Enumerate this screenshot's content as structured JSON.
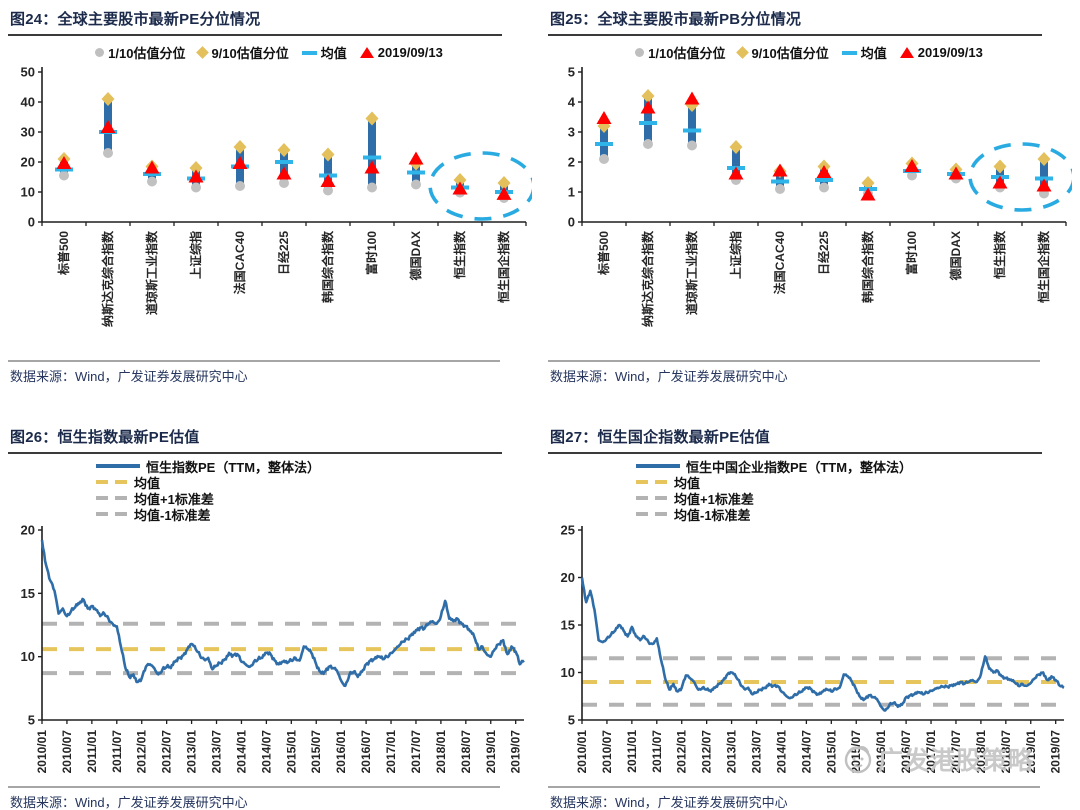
{
  "colors": {
    "bar_blue": "#2e6da8",
    "gold_diamond": "#e3c05c",
    "gray_marker": "#c1c1c1",
    "mean_cyan": "#2fb4e9",
    "current_red": "#ff0000",
    "highlight_cyan": "#29abe2",
    "line_blue": "#2e6da8",
    "mean_yellow": "#e6c65c",
    "std_gray": "#b3b3b3",
    "axis_black": "#1f1f1f",
    "title_navy": "#1b2a4a",
    "source_navy": "#25355e"
  },
  "watermark": {
    "logo": "gf-face-logo",
    "text": "广发港股策略"
  },
  "chart_data": [
    {
      "id": "fig24",
      "type": "range",
      "title": "图24：全球主要股市最新PE分位情况",
      "legend": [
        {
          "marker": "gray-dot",
          "label": "1/10估值分位"
        },
        {
          "marker": "gold-diamond",
          "label": "9/10估值分位"
        },
        {
          "marker": "cyan-dash",
          "label": "均值"
        },
        {
          "marker": "red-triangle",
          "label": "2019/09/13"
        }
      ],
      "categories": [
        "标普500",
        "纳斯达克综合指数",
        "道琼斯工业指数",
        "上证综指",
        "法国CAC40",
        "日经225",
        "韩国综合指数",
        "富时100",
        "德国DAX",
        "恒生指数",
        "恒生国企指数"
      ],
      "ylim": [
        0,
        50
      ],
      "yticks": [
        0,
        10,
        20,
        30,
        40,
        50
      ],
      "series": {
        "low": [
          15.5,
          23,
          13.5,
          11.5,
          12,
          13,
          10.5,
          11.5,
          12.5,
          9.8,
          8
        ],
        "high": [
          21,
          41,
          18.5,
          18,
          25,
          24,
          22.5,
          34.5,
          19.5,
          14,
          13
        ],
        "mean": [
          17.5,
          30,
          16,
          14.5,
          18.5,
          20,
          15.5,
          21.5,
          16.5,
          11.5,
          10
        ],
        "current": [
          19,
          31,
          17.5,
          14.5,
          19,
          15.5,
          13,
          17.5,
          20.5,
          10.5,
          8.7
        ]
      },
      "highlight": {
        "circled": [
          "恒生指数",
          "恒生国企指数"
        ],
        "center_value": 12,
        "half_height_value": 11
      },
      "source": "数据来源：Wind，广发证券发展研究中心"
    },
    {
      "id": "fig25",
      "type": "range",
      "title": "图25：全球主要股市最新PB分位情况",
      "legend": [
        {
          "marker": "gray-dot",
          "label": "1/10估值分位"
        },
        {
          "marker": "gold-diamond",
          "label": "9/10估值分位"
        },
        {
          "marker": "cyan-dash",
          "label": "均值"
        },
        {
          "marker": "red-triangle",
          "label": "2019/09/13"
        }
      ],
      "categories": [
        "标普500",
        "纳斯达克综合指数",
        "道琼斯工业指数",
        "上证综指",
        "法国CAC40",
        "日经225",
        "韩国综合指数",
        "富时100",
        "德国DAX",
        "恒生指数",
        "恒生国企指数"
      ],
      "ylim": [
        0,
        5
      ],
      "yticks": [
        0,
        1,
        2,
        3,
        4,
        5
      ],
      "series": {
        "low": [
          2.1,
          2.6,
          2.55,
          1.4,
          1.1,
          1.15,
          0.95,
          1.55,
          1.45,
          1.15,
          0.95
        ],
        "high": [
          3.2,
          4.2,
          3.9,
          2.5,
          1.7,
          1.85,
          1.3,
          1.95,
          1.75,
          1.85,
          2.1
        ],
        "mean": [
          2.6,
          3.3,
          3.05,
          1.8,
          1.35,
          1.4,
          1.1,
          1.7,
          1.6,
          1.5,
          1.45
        ],
        "current": [
          3.4,
          3.75,
          4.05,
          1.55,
          1.65,
          1.6,
          0.85,
          1.8,
          1.55,
          1.25,
          1.15
        ]
      },
      "highlight": {
        "circled": [
          "恒生指数",
          "恒生国企指数"
        ],
        "center_value": 1.5,
        "half_height_value": 1.1
      },
      "source": "数据来源：Wind，广发证券发展研究中心"
    },
    {
      "id": "fig26",
      "type": "line",
      "title": "图26：恒生指数最新PE估值",
      "legend": [
        {
          "marker": "blue-line",
          "label": "恒生指数PE（TTM，整体法）"
        },
        {
          "marker": "yellow-dash",
          "label": "均值"
        },
        {
          "marker": "gray-dash",
          "label": "均值+1标准差"
        },
        {
          "marker": "gray-dash",
          "label": "均值-1标准差"
        }
      ],
      "x_start": "2010/01",
      "x_interval": "monthly",
      "xticks": [
        "2010/01",
        "2010/07",
        "2011/01",
        "2011/07",
        "2012/01",
        "2012/07",
        "2013/01",
        "2013/07",
        "2014/01",
        "2014/07",
        "2015/01",
        "2015/07",
        "2016/01",
        "2016/07",
        "2017/01",
        "2017/07",
        "2018/01",
        "2018/07",
        "2019/01",
        "2019/07"
      ],
      "ylim": [
        5,
        20
      ],
      "yticks": [
        5,
        10,
        15,
        20
      ],
      "mean": 10.6,
      "mean_plus_std": 12.6,
      "mean_minus_std": 8.7,
      "values": [
        19.2,
        17.2,
        16.0,
        15.2,
        13.4,
        13.8,
        13.2,
        13.6,
        13.9,
        14.2,
        14.5,
        13.8,
        14.0,
        13.7,
        13.2,
        13.4,
        13.0,
        12.6,
        12.4,
        10.8,
        9.2,
        8.4,
        8.6,
        8.0,
        8.3,
        9.2,
        9.4,
        9.1,
        8.6,
        9.0,
        9.2,
        9.1,
        9.6,
        9.9,
        10.1,
        10.6,
        11.0,
        10.6,
        10.1,
        9.8,
        9.9,
        9.0,
        9.3,
        9.5,
        9.8,
        10.3,
        10.1,
        10.2,
        9.6,
        9.4,
        9.2,
        9.6,
        9.8,
        9.9,
        10.3,
        10.2,
        9.7,
        9.4,
        9.6,
        9.5,
        9.7,
        9.9,
        9.7,
        10.8,
        10.6,
        10.2,
        9.4,
        8.8,
        8.8,
        9.2,
        9.1,
        8.9,
        8.1,
        7.7,
        8.6,
        8.8,
        8.4,
        8.8,
        9.4,
        9.7,
        9.8,
        10.0,
        9.8,
        10.0,
        10.3,
        10.6,
        10.9,
        11.2,
        11.4,
        11.8,
        12.1,
        12.3,
        12.2,
        12.6,
        12.8,
        12.6,
        13.2,
        14.4,
        13.0,
        12.8,
        13.0,
        12.6,
        12.4,
        12.0,
        11.6,
        10.6,
        10.8,
        10.2,
        10.0,
        10.6,
        11.0,
        11.3,
        10.2,
        10.8,
        10.4,
        9.4,
        9.7
      ],
      "source": "数据来源：Wind，广发证券发展研究中心"
    },
    {
      "id": "fig27",
      "type": "line",
      "title": "图27：恒生国企指数最新PE估值",
      "legend": [
        {
          "marker": "blue-line",
          "label": "恒生中国企业指数PE（TTM，整体法）"
        },
        {
          "marker": "yellow-dash",
          "label": "均值"
        },
        {
          "marker": "gray-dash",
          "label": "均值+1标准差"
        },
        {
          "marker": "gray-dash",
          "label": "均值-1标准差"
        }
      ],
      "x_start": "2010/01",
      "x_interval": "monthly",
      "xticks": [
        "2010/01",
        "2010/07",
        "2011/01",
        "2011/07",
        "2012/01",
        "2012/07",
        "2013/01",
        "2013/07",
        "2014/01",
        "2014/07",
        "2015/01",
        "2015/07",
        "2016/01",
        "2016/07",
        "2017/01",
        "2017/07",
        "2018/01",
        "2018/07",
        "2019/01",
        "2019/07"
      ],
      "ylim": [
        5,
        25
      ],
      "yticks": [
        5,
        10,
        15,
        20,
        25
      ],
      "mean": 9.0,
      "mean_plus_std": 11.5,
      "mean_minus_std": 6.6,
      "values": [
        20.0,
        17.4,
        18.6,
        16.6,
        13.4,
        13.2,
        13.6,
        14.0,
        14.4,
        15.0,
        14.4,
        13.8,
        14.8,
        13.8,
        13.4,
        13.8,
        13.2,
        13.0,
        13.6,
        11.4,
        9.4,
        8.2,
        8.8,
        8.0,
        8.4,
        9.7,
        9.4,
        9.0,
        8.2,
        8.4,
        8.2,
        8.0,
        8.4,
        8.8,
        9.2,
        9.8,
        10.0,
        9.6,
        8.9,
        8.3,
        8.4,
        7.7,
        7.9,
        8.2,
        8.4,
        8.8,
        8.6,
        8.6,
        8.0,
        7.6,
        7.3,
        7.6,
        7.8,
        8.0,
        8.4,
        8.3,
        7.9,
        7.7,
        8.0,
        8.2,
        8.0,
        8.3,
        8.4,
        9.8,
        9.6,
        9.0,
        8.2,
        7.4,
        7.2,
        7.6,
        7.4,
        7.2,
        6.4,
        6.0,
        6.6,
        6.8,
        6.4,
        6.6,
        7.4,
        7.6,
        7.7,
        7.9,
        7.7,
        7.9,
        8.1,
        8.3,
        8.4,
        8.5,
        8.5,
        8.7,
        8.8,
        9.0,
        8.8,
        9.0,
        9.2,
        9.0,
        9.8,
        11.7,
        10.4,
        10.0,
        10.2,
        9.6,
        9.4,
        9.2,
        9.0,
        8.6,
        8.8,
        8.6,
        8.9,
        9.4,
        9.8,
        10.0,
        9.2,
        9.6,
        9.2,
        8.6,
        8.4
      ],
      "source": "数据来源：Wind，广发证券发展研究中心"
    }
  ]
}
